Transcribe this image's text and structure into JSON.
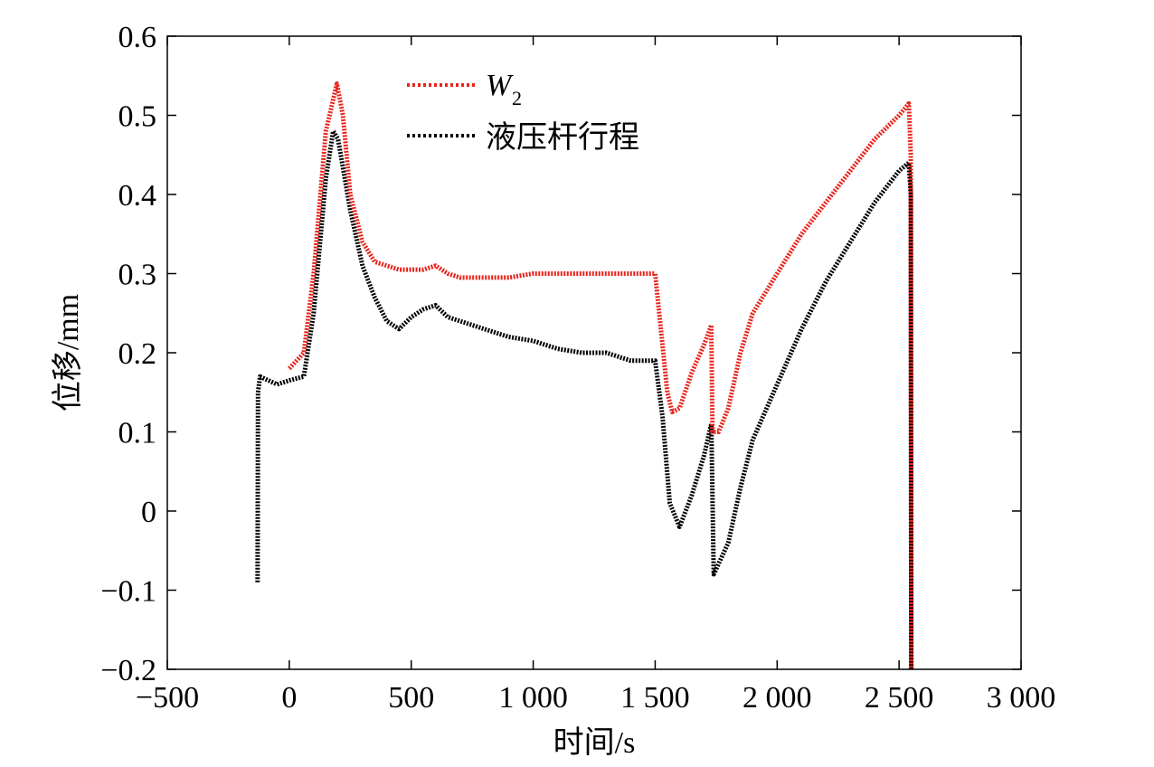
{
  "chart_data": {
    "type": "line",
    "title": "",
    "xlabel": "时间/s",
    "ylabel": "位移/mm",
    "xlim": [
      -500,
      3000
    ],
    "ylim": [
      -0.2,
      0.6
    ],
    "xticks": [
      -500,
      0,
      500,
      1000,
      1500,
      2000,
      2500,
      3000
    ],
    "xtick_labels": [
      "−500",
      "0",
      "500",
      "1 000",
      "1 500",
      "2 000",
      "2 500",
      "3 000"
    ],
    "yticks": [
      -0.2,
      -0.1,
      0,
      0.1,
      0.2,
      0.3,
      0.4,
      0.5,
      0.6
    ],
    "ytick_labels": [
      "−0.2",
      "−0.1",
      "0",
      "0.1",
      "0.2",
      "0.3",
      "0.4",
      "0.5",
      "0.6"
    ],
    "grid": false,
    "legend_position": "top-center",
    "series": [
      {
        "name": "W2",
        "legend_main": "W",
        "legend_sub": "2",
        "color": "#e8241c",
        "style": "dotted",
        "points": [
          [
            0,
            0.18
          ],
          [
            60,
            0.2
          ],
          [
            100,
            0.3
          ],
          [
            150,
            0.48
          ],
          [
            195,
            0.54
          ],
          [
            220,
            0.5
          ],
          [
            250,
            0.4
          ],
          [
            300,
            0.34
          ],
          [
            350,
            0.315
          ],
          [
            400,
            0.31
          ],
          [
            450,
            0.305
          ],
          [
            550,
            0.305
          ],
          [
            600,
            0.31
          ],
          [
            650,
            0.3
          ],
          [
            700,
            0.295
          ],
          [
            800,
            0.295
          ],
          [
            900,
            0.295
          ],
          [
            1000,
            0.3
          ],
          [
            1100,
            0.3
          ],
          [
            1200,
            0.3
          ],
          [
            1300,
            0.3
          ],
          [
            1400,
            0.3
          ],
          [
            1500,
            0.3
          ],
          [
            1550,
            0.15
          ],
          [
            1570,
            0.125
          ],
          [
            1600,
            0.13
          ],
          [
            1650,
            0.175
          ],
          [
            1700,
            0.21
          ],
          [
            1730,
            0.235
          ],
          [
            1735,
            0.1
          ],
          [
            1760,
            0.1
          ],
          [
            1800,
            0.13
          ],
          [
            1850,
            0.2
          ],
          [
            1900,
            0.25
          ],
          [
            2000,
            0.3
          ],
          [
            2100,
            0.35
          ],
          [
            2200,
            0.39
          ],
          [
            2300,
            0.43
          ],
          [
            2400,
            0.47
          ],
          [
            2500,
            0.5
          ],
          [
            2540,
            0.515
          ],
          [
            2548,
            0.45
          ],
          [
            2550,
            -0.2
          ]
        ]
      },
      {
        "name": "液压杆行程",
        "color": "#000000",
        "style": "dotted",
        "points": [
          [
            -130,
            -0.09
          ],
          [
            -128,
            0.15
          ],
          [
            -120,
            0.17
          ],
          [
            -50,
            0.16
          ],
          [
            0,
            0.165
          ],
          [
            60,
            0.17
          ],
          [
            100,
            0.25
          ],
          [
            150,
            0.42
          ],
          [
            180,
            0.48
          ],
          [
            200,
            0.47
          ],
          [
            250,
            0.38
          ],
          [
            300,
            0.31
          ],
          [
            350,
            0.27
          ],
          [
            400,
            0.24
          ],
          [
            450,
            0.23
          ],
          [
            500,
            0.245
          ],
          [
            550,
            0.255
          ],
          [
            600,
            0.26
          ],
          [
            650,
            0.245
          ],
          [
            700,
            0.24
          ],
          [
            800,
            0.23
          ],
          [
            900,
            0.22
          ],
          [
            1000,
            0.215
          ],
          [
            1100,
            0.205
          ],
          [
            1200,
            0.2
          ],
          [
            1300,
            0.2
          ],
          [
            1400,
            0.19
          ],
          [
            1500,
            0.19
          ],
          [
            1530,
            0.12
          ],
          [
            1560,
            0.01
          ],
          [
            1600,
            -0.02
          ],
          [
            1650,
            0.02
          ],
          [
            1700,
            0.07
          ],
          [
            1730,
            0.11
          ],
          [
            1740,
            -0.08
          ],
          [
            1800,
            -0.04
          ],
          [
            1850,
            0.03
          ],
          [
            1900,
            0.09
          ],
          [
            2000,
            0.16
          ],
          [
            2100,
            0.23
          ],
          [
            2200,
            0.29
          ],
          [
            2300,
            0.34
          ],
          [
            2400,
            0.39
          ],
          [
            2500,
            0.43
          ],
          [
            2540,
            0.44
          ],
          [
            2548,
            0.4
          ],
          [
            2550,
            -0.2
          ]
        ]
      }
    ]
  }
}
